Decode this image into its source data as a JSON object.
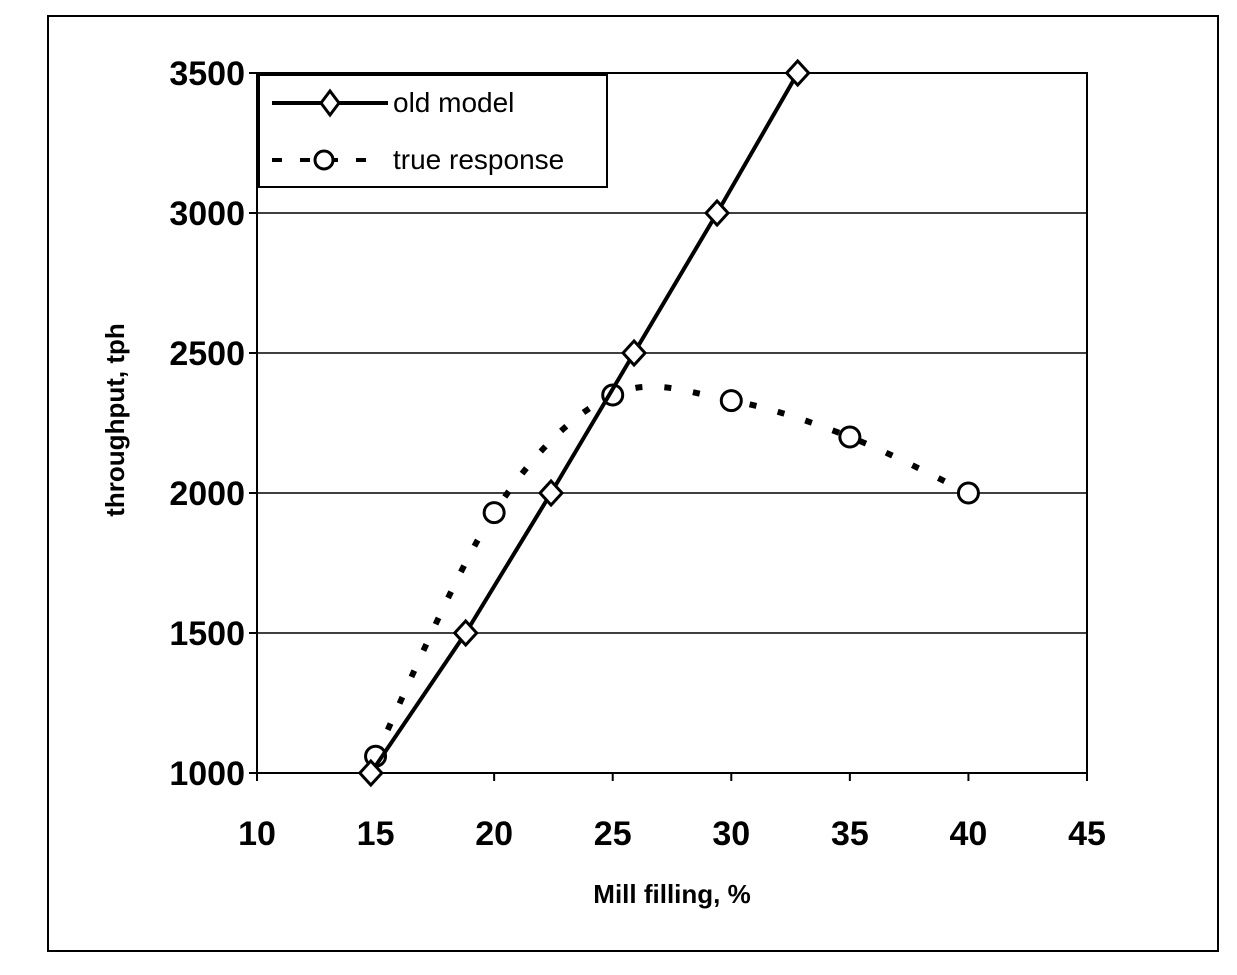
{
  "chart_data": {
    "type": "line",
    "title": "",
    "xlabel": "Mill filling, %",
    "ylabel": "throughput, tph",
    "xlim": [
      10,
      45
    ],
    "ylim": [
      1000,
      3500
    ],
    "xticks": [
      10,
      15,
      20,
      25,
      30,
      35,
      40,
      45
    ],
    "yticks": [
      1000,
      1500,
      2000,
      2500,
      3000,
      3500
    ],
    "grid": "horizontal",
    "legend_position": "upper-left",
    "series": [
      {
        "name": "old model",
        "style": "solid",
        "marker": "diamond",
        "color": "#000000",
        "x": [
          14.8,
          18.8,
          22.4,
          25.9,
          29.4,
          32.8
        ],
        "y": [
          1000,
          1500,
          2000,
          2500,
          3000,
          3500
        ]
      },
      {
        "name": "true response",
        "style": "dotted",
        "marker": "circle",
        "color": "#000000",
        "x": [
          15,
          20,
          25,
          30,
          35,
          40
        ],
        "y": [
          1060,
          1930,
          2350,
          2330,
          2200,
          2000
        ]
      }
    ]
  },
  "legend": {
    "old_model": "old model",
    "true_response": "true response"
  },
  "axes": {
    "xlabel": "Mill filling, %",
    "ylabel": "throughput, tph"
  }
}
